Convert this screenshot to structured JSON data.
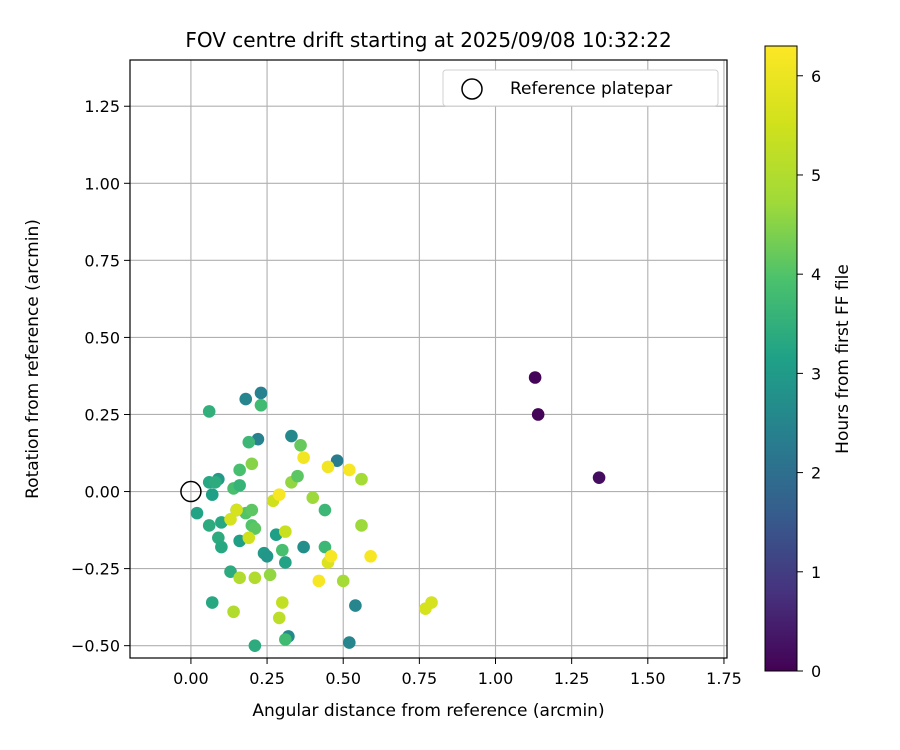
{
  "chart_data": {
    "type": "scatter",
    "title": "FOV centre drift starting at 2025/09/08 10:32:22",
    "xlabel": "Angular distance from reference (arcmin)",
    "ylabel": "Rotation from reference (arcmin)",
    "xlim": [
      -0.2,
      1.76
    ],
    "ylim": [
      -0.54,
      1.4
    ],
    "x_ticks": [
      0.0,
      0.25,
      0.5,
      0.75,
      1.0,
      1.25,
      1.5,
      1.75
    ],
    "x_tick_labels": [
      "0.00",
      "0.25",
      "0.50",
      "0.75",
      "1.00",
      "1.25",
      "1.50",
      "1.75"
    ],
    "y_ticks": [
      -0.5,
      -0.25,
      0.0,
      0.25,
      0.5,
      0.75,
      1.0,
      1.25
    ],
    "y_tick_labels": [
      "−0.50",
      "−0.25",
      "0.00",
      "0.25",
      "0.50",
      "0.75",
      "1.00",
      "1.25"
    ],
    "grid": true,
    "legend": {
      "placement": "upper right",
      "entries": [
        "Reference platepar"
      ]
    },
    "reference_point": {
      "x": 0.0,
      "y": 0.0
    },
    "colorbar": {
      "label": "Hours from first FF file",
      "range": [
        0,
        6.3
      ],
      "ticks": [
        0,
        1,
        2,
        3,
        4,
        5,
        6
      ],
      "tick_labels": [
        "0",
        "1",
        "2",
        "3",
        "4",
        "5",
        "6"
      ],
      "colormap": "viridis"
    },
    "points": [
      {
        "x": 1.13,
        "y": 0.37,
        "c": 0.05
      },
      {
        "x": 1.14,
        "y": 0.25,
        "c": 0.05
      },
      {
        "x": 1.34,
        "y": 0.045,
        "c": 0.2
      },
      {
        "x": 0.18,
        "y": 0.3,
        "c": 2.5
      },
      {
        "x": 0.23,
        "y": 0.32,
        "c": 2.4
      },
      {
        "x": 0.22,
        "y": 0.17,
        "c": 2.4
      },
      {
        "x": 0.33,
        "y": 0.18,
        "c": 2.6
      },
      {
        "x": 0.06,
        "y": 0.26,
        "c": 3.5
      },
      {
        "x": 0.23,
        "y": 0.28,
        "c": 3.8
      },
      {
        "x": 0.19,
        "y": 0.16,
        "c": 3.7
      },
      {
        "x": 0.36,
        "y": 0.15,
        "c": 4.2
      },
      {
        "x": 0.48,
        "y": 0.1,
        "c": 2.3
      },
      {
        "x": 0.2,
        "y": 0.09,
        "c": 4.5
      },
      {
        "x": 0.16,
        "y": 0.07,
        "c": 3.9
      },
      {
        "x": 0.09,
        "y": 0.04,
        "c": 3.0
      },
      {
        "x": 0.06,
        "y": 0.03,
        "c": 3.3
      },
      {
        "x": 0.08,
        "y": 0.03,
        "c": 3.4
      },
      {
        "x": 0.07,
        "y": -0.01,
        "c": 3.1
      },
      {
        "x": 0.02,
        "y": -0.07,
        "c": 3.2
      },
      {
        "x": 0.06,
        "y": -0.11,
        "c": 3.4
      },
      {
        "x": 0.1,
        "y": -0.1,
        "c": 3.3
      },
      {
        "x": 0.09,
        "y": -0.15,
        "c": 3.4
      },
      {
        "x": 0.1,
        "y": -0.18,
        "c": 3.3
      },
      {
        "x": 0.14,
        "y": 0.01,
        "c": 3.9
      },
      {
        "x": 0.16,
        "y": 0.02,
        "c": 3.6
      },
      {
        "x": 0.15,
        "y": -0.06,
        "c": 3.2
      },
      {
        "x": 0.16,
        "y": -0.16,
        "c": 3.1
      },
      {
        "x": 0.13,
        "y": -0.26,
        "c": 3.4
      },
      {
        "x": 0.07,
        "y": -0.36,
        "c": 3.3
      },
      {
        "x": 0.18,
        "y": -0.07,
        "c": 4.0
      },
      {
        "x": 0.2,
        "y": -0.06,
        "c": 4.1
      },
      {
        "x": 0.2,
        "y": -0.11,
        "c": 4.0
      },
      {
        "x": 0.21,
        "y": -0.12,
        "c": 4.1
      },
      {
        "x": 0.24,
        "y": -0.2,
        "c": 3.0
      },
      {
        "x": 0.25,
        "y": -0.21,
        "c": 2.9
      },
      {
        "x": 0.28,
        "y": -0.14,
        "c": 3.1
      },
      {
        "x": 0.31,
        "y": -0.23,
        "c": 3.2
      },
      {
        "x": 0.3,
        "y": -0.19,
        "c": 3.9
      },
      {
        "x": 0.33,
        "y": 0.03,
        "c": 4.6
      },
      {
        "x": 0.35,
        "y": 0.05,
        "c": 4.1
      },
      {
        "x": 0.4,
        "y": -0.02,
        "c": 4.7
      },
      {
        "x": 0.44,
        "y": -0.06,
        "c": 3.7
      },
      {
        "x": 0.44,
        "y": -0.18,
        "c": 3.7
      },
      {
        "x": 0.37,
        "y": -0.18,
        "c": 2.7
      },
      {
        "x": 0.54,
        "y": -0.37,
        "c": 2.5
      },
      {
        "x": 0.52,
        "y": -0.49,
        "c": 2.5
      },
      {
        "x": 0.32,
        "y": -0.47,
        "c": 2.6
      },
      {
        "x": 0.31,
        "y": -0.48,
        "c": 3.8
      },
      {
        "x": 0.21,
        "y": -0.5,
        "c": 3.4
      },
      {
        "x": 0.56,
        "y": 0.04,
        "c": 4.8
      },
      {
        "x": 0.56,
        "y": -0.11,
        "c": 4.7
      },
      {
        "x": 0.5,
        "y": -0.29,
        "c": 4.8
      },
      {
        "x": 0.26,
        "y": -0.27,
        "c": 4.6
      },
      {
        "x": 0.16,
        "y": -0.28,
        "c": 5.0
      },
      {
        "x": 0.21,
        "y": -0.28,
        "c": 5.0
      },
      {
        "x": 0.14,
        "y": -0.39,
        "c": 5.0
      },
      {
        "x": 0.29,
        "y": -0.41,
        "c": 5.2
      },
      {
        "x": 0.3,
        "y": -0.36,
        "c": 5.3
      },
      {
        "x": 0.27,
        "y": -0.03,
        "c": 5.5
      },
      {
        "x": 0.19,
        "y": -0.15,
        "c": 5.5
      },
      {
        "x": 0.31,
        "y": -0.13,
        "c": 5.4
      },
      {
        "x": 0.13,
        "y": -0.09,
        "c": 5.6
      },
      {
        "x": 0.15,
        "y": -0.06,
        "c": 5.6
      },
      {
        "x": 0.77,
        "y": -0.38,
        "c": 5.6
      },
      {
        "x": 0.79,
        "y": -0.36,
        "c": 5.6
      },
      {
        "x": 0.45,
        "y": -0.23,
        "c": 5.7
      },
      {
        "x": 0.29,
        "y": -0.01,
        "c": 6.2
      },
      {
        "x": 0.37,
        "y": 0.11,
        "c": 6.1
      },
      {
        "x": 0.45,
        "y": 0.08,
        "c": 6.1
      },
      {
        "x": 0.52,
        "y": 0.07,
        "c": 6.2
      },
      {
        "x": 0.46,
        "y": -0.21,
        "c": 6.2
      },
      {
        "x": 0.42,
        "y": -0.29,
        "c": 6.2
      },
      {
        "x": 0.59,
        "y": -0.21,
        "c": 6.2
      }
    ]
  }
}
